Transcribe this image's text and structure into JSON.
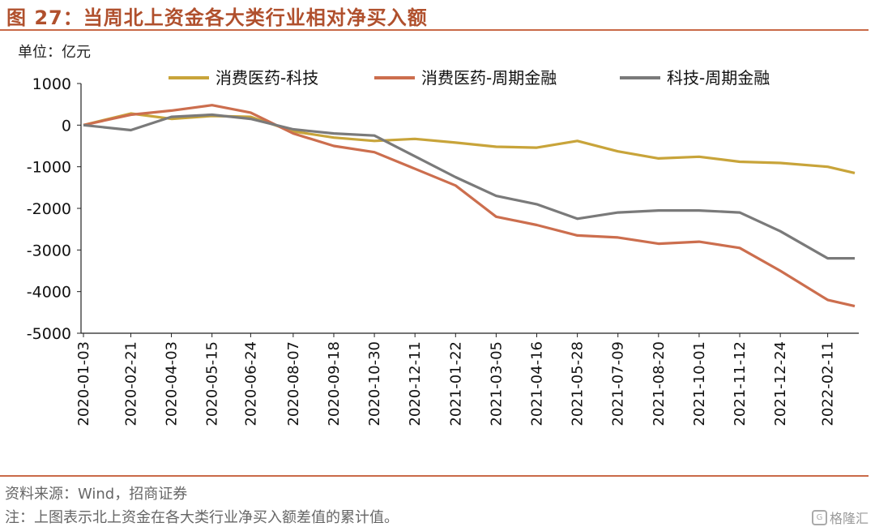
{
  "figure": {
    "title": "图 27：当周北上资金各大类行业相对净买入额",
    "unit": "单位：亿元",
    "source": "资料来源：Wind，招商证券",
    "footnote": "注：上图表示北上资金在各大类行业净买入额差值的累计值。",
    "watermark": "格隆汇",
    "watermark_icon": "G"
  },
  "chart_data": {
    "type": "line",
    "title": "",
    "xlabel": "",
    "ylabel": "单位：亿元",
    "ylim": [
      -5000,
      1000
    ],
    "yticks": [
      1000,
      0,
      -1000,
      -2000,
      -3000,
      -4000,
      -5000
    ],
    "grid": false,
    "legend_position": "top",
    "xticks": [
      "2020-01-03",
      "2020-02-21",
      "2020-04-03",
      "2020-05-15",
      "2020-06-24",
      "2020-08-07",
      "2020-09-18",
      "2020-10-30",
      "2020-12-11",
      "2021-01-22",
      "2021-03-05",
      "2021-04-16",
      "2021-05-28",
      "2021-07-09",
      "2021-08-20",
      "2021-10-01",
      "2021-11-12",
      "2021-12-24",
      "2022-02-11"
    ],
    "x": [
      "2020-01-03",
      "2020-02-21",
      "2020-04-03",
      "2020-05-15",
      "2020-06-24",
      "2020-08-07",
      "2020-09-18",
      "2020-10-30",
      "2020-12-11",
      "2021-01-22",
      "2021-03-05",
      "2021-04-16",
      "2021-05-28",
      "2021-07-09",
      "2021-08-20",
      "2021-10-01",
      "2021-11-12",
      "2021-12-24",
      "2022-02-11",
      "2022-03-11"
    ],
    "series": [
      {
        "name": "消费医药-科技",
        "color": "#c8a43a",
        "values": [
          0,
          280,
          150,
          220,
          200,
          -150,
          -300,
          -380,
          -330,
          -420,
          -520,
          -540,
          -380,
          -630,
          -800,
          -760,
          -880,
          -910,
          -1000,
          -1150
        ]
      },
      {
        "name": "消费医药-周期金融",
        "color": "#cc6e4e",
        "values": [
          0,
          250,
          350,
          480,
          300,
          -200,
          -500,
          -650,
          -1050,
          -1450,
          -2200,
          -2400,
          -2650,
          -2700,
          -2850,
          -2800,
          -2950,
          -3500,
          -4200,
          -4350
        ]
      },
      {
        "name": "科技-周期金融",
        "color": "#7a7a7a",
        "values": [
          0,
          -120,
          200,
          250,
          150,
          -100,
          -200,
          -250,
          -750,
          -1250,
          -1700,
          -1900,
          -2250,
          -2100,
          -2050,
          -2050,
          -2100,
          -2550,
          -3200,
          -3200
        ]
      }
    ]
  }
}
